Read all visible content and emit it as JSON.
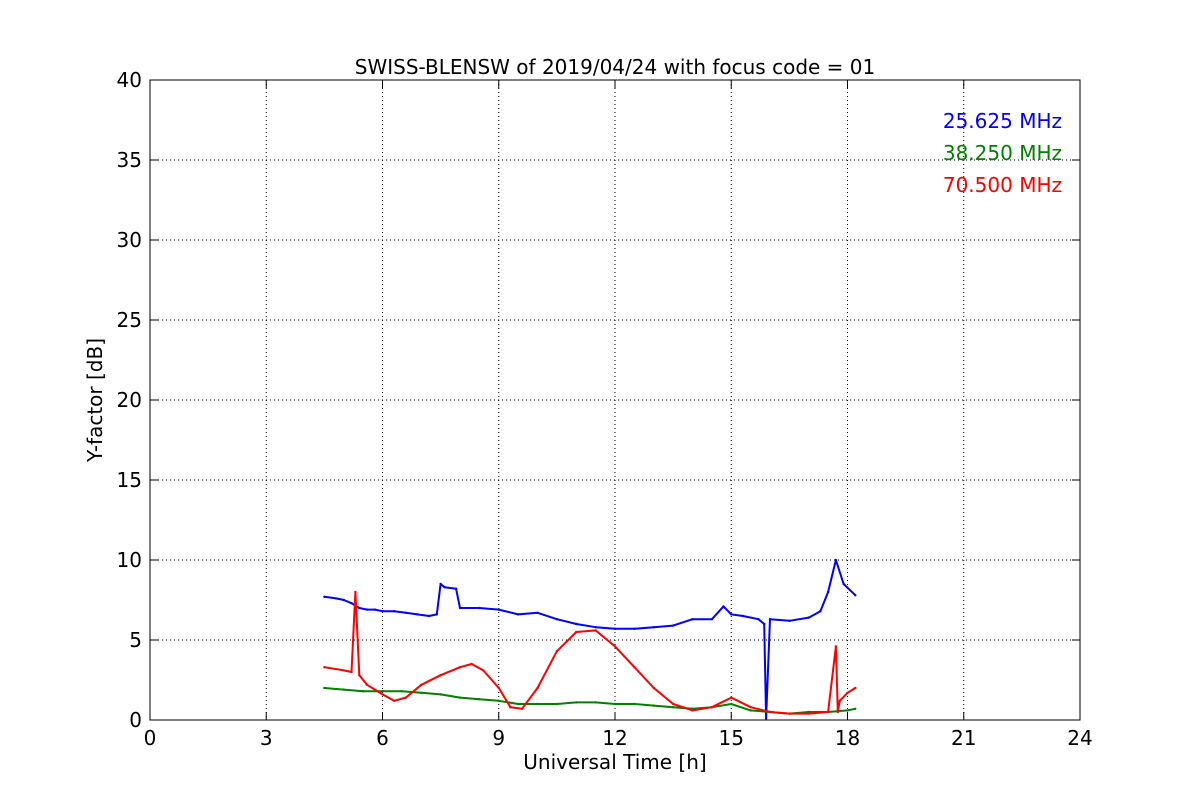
{
  "chart_data": {
    "type": "line",
    "title": "SWISS-BLENSW of 2019/04/24 with focus code = 01",
    "xlabel": "Universal Time [h]",
    "ylabel": "Y-factor [dB]",
    "xlim": [
      0,
      24
    ],
    "ylim": [
      0,
      40
    ],
    "xticks": [
      0,
      3,
      6,
      9,
      12,
      15,
      18,
      21,
      24
    ],
    "yticks": [
      0,
      5,
      10,
      15,
      20,
      25,
      30,
      35,
      40
    ],
    "grid": true,
    "legend_position": "top-right",
    "series": [
      {
        "name": "25.625 MHz",
        "color": "#0000ff",
        "x": [
          4.5,
          4.8,
          5.0,
          5.2,
          5.4,
          5.6,
          5.8,
          6.0,
          6.3,
          6.6,
          6.9,
          7.2,
          7.4,
          7.5,
          7.6,
          7.9,
          8.0,
          8.5,
          9.0,
          9.5,
          10.0,
          10.5,
          11.0,
          11.5,
          12.0,
          12.5,
          13.0,
          13.5,
          14.0,
          14.5,
          14.8,
          15.0,
          15.3,
          15.7,
          15.85,
          15.9,
          16.0,
          16.5,
          17.0,
          17.3,
          17.5,
          17.7,
          17.9,
          18.2
        ],
        "y": [
          7.7,
          7.6,
          7.5,
          7.3,
          7.0,
          6.9,
          6.9,
          6.8,
          6.8,
          6.7,
          6.6,
          6.5,
          6.6,
          8.5,
          8.3,
          8.2,
          7.0,
          7.0,
          6.9,
          6.6,
          6.7,
          6.3,
          6.0,
          5.8,
          5.7,
          5.7,
          5.8,
          5.9,
          6.3,
          6.3,
          7.1,
          6.6,
          6.5,
          6.3,
          6.0,
          0.1,
          6.3,
          6.2,
          6.4,
          6.8,
          8.0,
          10.0,
          8.5,
          7.8
        ]
      },
      {
        "name": "38.250 MHz",
        "color": "#008000",
        "x": [
          4.5,
          5.0,
          5.5,
          6.0,
          6.5,
          7.0,
          7.5,
          8.0,
          8.5,
          9.0,
          9.5,
          10.0,
          10.5,
          11.0,
          11.5,
          12.0,
          12.5,
          13.0,
          13.5,
          14.0,
          14.5,
          15.0,
          15.5,
          16.0,
          16.5,
          17.0,
          17.5,
          18.0,
          18.2
        ],
        "y": [
          2.0,
          1.9,
          1.8,
          1.8,
          1.8,
          1.7,
          1.6,
          1.4,
          1.3,
          1.2,
          1.0,
          1.0,
          1.0,
          1.1,
          1.1,
          1.0,
          1.0,
          0.9,
          0.8,
          0.7,
          0.8,
          1.0,
          0.6,
          0.5,
          0.4,
          0.5,
          0.5,
          0.6,
          0.7
        ]
      },
      {
        "name": "70.500 MHz",
        "color": "#ff0000",
        "x": [
          4.5,
          5.0,
          5.2,
          5.3,
          5.4,
          5.6,
          6.0,
          6.3,
          6.6,
          7.0,
          7.5,
          8.0,
          8.3,
          8.6,
          9.0,
          9.3,
          9.6,
          10.0,
          10.5,
          11.0,
          11.5,
          12.0,
          12.5,
          13.0,
          13.5,
          14.0,
          14.5,
          15.0,
          15.5,
          16.0,
          16.5,
          17.0,
          17.5,
          17.7,
          17.75,
          17.8,
          18.0,
          18.2
        ],
        "y": [
          3.3,
          3.1,
          3.0,
          8.0,
          2.8,
          2.2,
          1.6,
          1.2,
          1.4,
          2.2,
          2.8,
          3.3,
          3.5,
          3.1,
          2.0,
          0.8,
          0.7,
          2.0,
          4.3,
          5.5,
          5.6,
          4.6,
          3.3,
          2.0,
          1.0,
          0.6,
          0.8,
          1.4,
          0.8,
          0.5,
          0.4,
          0.4,
          0.5,
          4.6,
          0.5,
          1.2,
          1.7,
          2.0
        ]
      }
    ]
  }
}
